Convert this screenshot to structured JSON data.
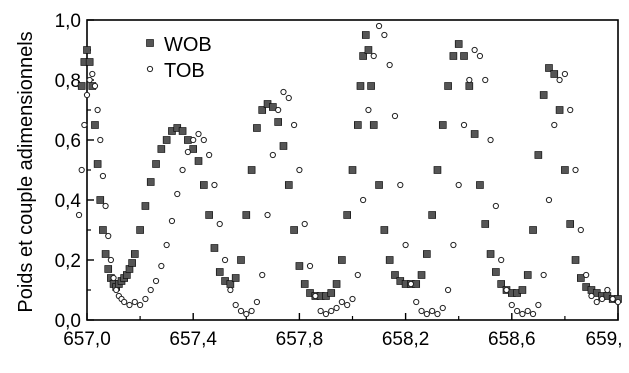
{
  "chart_data": {
    "type": "scatter",
    "title": "",
    "xlabel": "",
    "ylabel": "Poids et couple adimensionnels",
    "xlim": [
      657.0,
      659.0
    ],
    "ylim": [
      0.0,
      1.0
    ],
    "x_ticks": [
      657.0,
      657.4,
      657.8,
      658.2,
      658.6,
      659.0
    ],
    "x_tick_labels": [
      "657,0",
      "657,4",
      "657,8",
      "658,2",
      "658,6",
      "659,"
    ],
    "y_ticks": [
      0.0,
      0.2,
      0.4,
      0.6,
      0.8,
      1.0
    ],
    "y_tick_labels": [
      "0,0",
      "0,2",
      "0,4",
      "0,6",
      "0,8",
      "1,0"
    ],
    "grid": false,
    "legend_position": "top-left",
    "series": [
      {
        "name": "WOB",
        "marker": "square-filled",
        "color": "#555555",
        "x": [
          656.98,
          656.99,
          657.0,
          657.01,
          657.02,
          657.03,
          657.04,
          657.05,
          657.06,
          657.07,
          657.08,
          657.09,
          657.1,
          657.11,
          657.12,
          657.13,
          657.14,
          657.15,
          657.16,
          657.17,
          657.18,
          657.2,
          657.22,
          657.24,
          657.26,
          657.28,
          657.3,
          657.32,
          657.34,
          657.36,
          657.38,
          657.4,
          657.42,
          657.44,
          657.46,
          657.48,
          657.5,
          657.52,
          657.54,
          657.56,
          657.58,
          657.6,
          657.62,
          657.64,
          657.66,
          657.68,
          657.7,
          657.72,
          657.74,
          657.76,
          657.78,
          657.8,
          657.82,
          657.84,
          657.86,
          657.88,
          657.9,
          657.92,
          657.94,
          657.96,
          657.98,
          658.0,
          658.02,
          658.03,
          658.04,
          658.05,
          658.06,
          658.07,
          658.08,
          658.1,
          658.12,
          658.14,
          658.16,
          658.18,
          658.2,
          658.22,
          658.24,
          658.26,
          658.28,
          658.3,
          658.32,
          658.34,
          658.36,
          658.38,
          658.4,
          658.42,
          658.44,
          658.46,
          658.48,
          658.5,
          658.52,
          658.54,
          658.56,
          658.58,
          658.6,
          658.62,
          658.64,
          658.66,
          658.68,
          658.7,
          658.72,
          658.74,
          658.76,
          658.78,
          658.8,
          658.82,
          658.84,
          658.86,
          658.88,
          658.9,
          658.92,
          658.94,
          658.96,
          658.98,
          659.0
        ],
        "y": [
          0.78,
          0.86,
          0.9,
          0.86,
          0.78,
          0.65,
          0.52,
          0.4,
          0.3,
          0.22,
          0.17,
          0.14,
          0.12,
          0.11,
          0.12,
          0.13,
          0.14,
          0.15,
          0.17,
          0.19,
          0.22,
          0.3,
          0.38,
          0.46,
          0.52,
          0.57,
          0.6,
          0.63,
          0.64,
          0.63,
          0.6,
          0.57,
          0.53,
          0.45,
          0.35,
          0.24,
          0.16,
          0.13,
          0.12,
          0.14,
          0.2,
          0.35,
          0.5,
          0.64,
          0.7,
          0.72,
          0.71,
          0.66,
          0.58,
          0.45,
          0.3,
          0.18,
          0.12,
          0.09,
          0.08,
          0.08,
          0.08,
          0.09,
          0.12,
          0.2,
          0.35,
          0.5,
          0.65,
          0.78,
          0.88,
          0.95,
          0.9,
          0.78,
          0.65,
          0.45,
          0.3,
          0.2,
          0.15,
          0.13,
          0.12,
          0.12,
          0.12,
          0.15,
          0.22,
          0.35,
          0.5,
          0.65,
          0.78,
          0.88,
          0.92,
          0.88,
          0.78,
          0.62,
          0.45,
          0.32,
          0.22,
          0.16,
          0.12,
          0.1,
          0.09,
          0.09,
          0.1,
          0.15,
          0.3,
          0.55,
          0.75,
          0.84,
          0.82,
          0.7,
          0.5,
          0.32,
          0.2,
          0.14,
          0.11,
          0.1,
          0.09,
          0.08,
          0.08,
          0.07,
          0.07
        ]
      },
      {
        "name": "TOB",
        "marker": "circle-open",
        "color": "#222222",
        "x": [
          656.97,
          656.98,
          656.99,
          657.0,
          657.01,
          657.02,
          657.03,
          657.04,
          657.05,
          657.06,
          657.07,
          657.08,
          657.09,
          657.1,
          657.11,
          657.12,
          657.13,
          657.14,
          657.16,
          657.18,
          657.2,
          657.22,
          657.24,
          657.26,
          657.28,
          657.3,
          657.32,
          657.34,
          657.36,
          657.38,
          657.4,
          657.42,
          657.44,
          657.46,
          657.48,
          657.5,
          657.52,
          657.54,
          657.56,
          657.58,
          657.6,
          657.62,
          657.64,
          657.66,
          657.68,
          657.7,
          657.72,
          657.74,
          657.76,
          657.78,
          657.8,
          657.82,
          657.84,
          657.86,
          657.88,
          657.9,
          657.92,
          657.94,
          657.96,
          657.98,
          658.0,
          658.02,
          658.04,
          658.06,
          658.08,
          658.1,
          658.12,
          658.14,
          658.16,
          658.18,
          658.2,
          658.22,
          658.24,
          658.26,
          658.28,
          658.3,
          658.32,
          658.34,
          658.36,
          658.38,
          658.4,
          658.42,
          658.44,
          658.46,
          658.48,
          658.5,
          658.52,
          658.54,
          658.56,
          658.58,
          658.6,
          658.62,
          658.64,
          658.66,
          658.68,
          658.7,
          658.72,
          658.74,
          658.76,
          658.78,
          658.8,
          658.82,
          658.84,
          658.86,
          658.88,
          658.9,
          658.92,
          658.94,
          658.96,
          658.98,
          659.0
        ],
        "y": [
          0.35,
          0.5,
          0.65,
          0.75,
          0.8,
          0.82,
          0.78,
          0.7,
          0.6,
          0.48,
          0.38,
          0.28,
          0.2,
          0.14,
          0.1,
          0.08,
          0.07,
          0.06,
          0.05,
          0.06,
          0.05,
          0.07,
          0.1,
          0.13,
          0.18,
          0.25,
          0.33,
          0.42,
          0.5,
          0.56,
          0.6,
          0.62,
          0.6,
          0.55,
          0.45,
          0.32,
          0.2,
          0.1,
          0.05,
          0.03,
          0.02,
          0.03,
          0.06,
          0.15,
          0.35,
          0.55,
          0.7,
          0.76,
          0.74,
          0.65,
          0.5,
          0.32,
          0.18,
          0.08,
          0.03,
          0.02,
          0.03,
          0.04,
          0.06,
          0.05,
          0.07,
          0.15,
          0.4,
          0.7,
          0.88,
          0.98,
          0.95,
          0.85,
          0.68,
          0.45,
          0.25,
          0.12,
          0.06,
          0.03,
          0.02,
          0.03,
          0.02,
          0.04,
          0.1,
          0.25,
          0.45,
          0.65,
          0.8,
          0.9,
          0.88,
          0.8,
          0.6,
          0.38,
          0.2,
          0.1,
          0.05,
          0.03,
          0.02,
          0.03,
          0.02,
          0.05,
          0.15,
          0.4,
          0.65,
          0.8,
          0.82,
          0.7,
          0.5,
          0.3,
          0.15,
          0.08,
          0.06,
          0.07,
          0.1,
          0.07,
          0.06
        ]
      }
    ]
  }
}
